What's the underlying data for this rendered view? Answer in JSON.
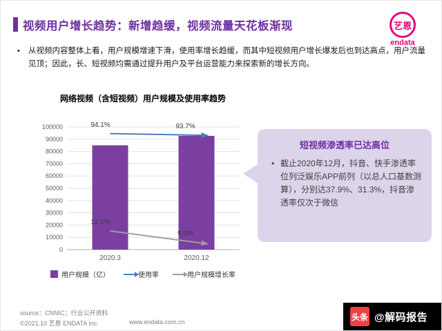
{
  "header": {
    "title": "视频用户增长趋势：新增趋缓，视频流量天花板渐现",
    "accent_color": "#7030A0"
  },
  "logo": {
    "cn": "艺恩",
    "en": "endata",
    "color": "#E6007E"
  },
  "intro": {
    "bullet": "•",
    "text": "从视频内容整体上看，用户规模增速下滑，使用率增长趋缓，而其中短视频用户增长爆发后也到达高点，用户流量见顶；因此，长、短视频均需通过提升用户及平台运营能力来探索新的增长方向。"
  },
  "chart_data": {
    "type": "bar",
    "title": "网络视频（含短视频）用户规模及使用率趋势",
    "categories": [
      "2020.3",
      "2020.12"
    ],
    "series": [
      {
        "name": "用户规模（亿）",
        "kind": "bar",
        "color": "#7B3FA2",
        "values": [
          85000,
          92700
        ]
      },
      {
        "name": "使用率",
        "kind": "line",
        "color": "#4A7EBF",
        "values_pct": [
          94.1,
          93.7
        ],
        "labels": [
          "94.1%",
          "93.7%"
        ]
      },
      {
        "name": "用户规模增长率",
        "kind": "line",
        "color": "#9E9E9E",
        "values_pct": [
          12.1,
          9.0
        ],
        "labels": [
          "12.1%",
          "9.0%"
        ]
      }
    ],
    "ylim": [
      0,
      100000
    ],
    "ytick_step": 10000,
    "grid": true,
    "legend_position": "bottom",
    "secondary_axis_pct": [
      0,
      100
    ]
  },
  "callout": {
    "title": "短视频渗透率已达高位",
    "bullet": "•",
    "text": "截止2020年12月，抖音、快手渗透率位列泛娱乐APP前列（以总人口基数测算），分别达37.9%、31.3%，抖音渗透率仅次于微信",
    "bg_color": "#DCD4EA"
  },
  "footer": {
    "source": "source：CNNIC；行业公开资料",
    "copyright": "©2021.10 艺恩 ENDATA Inc.",
    "website": "www.endata.com.cn"
  },
  "watermark": {
    "platform": "头条",
    "handle": "@解码报告",
    "platform_color": "#F04142"
  }
}
